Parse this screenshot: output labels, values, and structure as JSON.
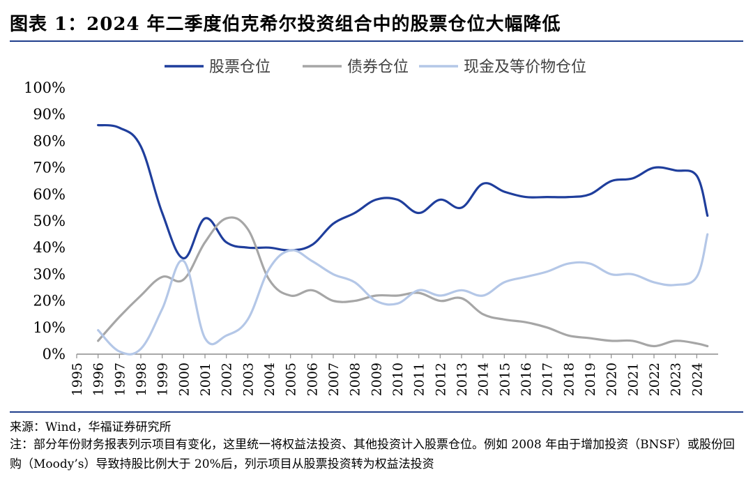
{
  "title": "图表 1：2024 年二季度伯克希尔投资组合中的股票仓位大幅降低",
  "source": "来源：Wind，华福证券研究所",
  "note": "注：部分年份财务报表列示项目有变化，这里统一将权益法投资、其他投资计入股票仓位。例如 2008 年由于增加投资（BNSF）或股份回购（Moody’s）导致持股比例大于 20%后，列示项目从股票投资转为权益法投资",
  "chart_data": {
    "type": "line",
    "title": "",
    "xlabel": "",
    "ylabel": "",
    "x_ticks": [
      "1995",
      "1996",
      "1997",
      "1998",
      "1999",
      "2000",
      "2001",
      "2002",
      "2003",
      "2004",
      "2005",
      "2006",
      "2007",
      "2008",
      "2009",
      "2010",
      "2011",
      "2012",
      "2013",
      "2014",
      "2015",
      "2016",
      "2017",
      "2018",
      "2019",
      "2020",
      "2021",
      "2022",
      "2023",
      "2024"
    ],
    "x_range": [
      1995,
      2025
    ],
    "y_ticks": [
      "0%",
      "10%",
      "20%",
      "30%",
      "40%",
      "50%",
      "60%",
      "70%",
      "80%",
      "90%",
      "100%"
    ],
    "ylim": [
      0,
      100
    ],
    "grid": false,
    "legend_position": "top",
    "x": [
      1996,
      1997,
      1998,
      1999,
      2000,
      2001,
      2002,
      2003,
      2004,
      2005,
      2006,
      2007,
      2008,
      2009,
      2010,
      2011,
      2012,
      2013,
      2014,
      2015,
      2016,
      2017,
      2018,
      2019,
      2020,
      2021,
      2022,
      2023,
      2024,
      2024.5
    ],
    "series": [
      {
        "name": "股票仓位",
        "color": "#1f3e9c",
        "values": [
          86,
          85,
          78,
          53,
          36,
          51,
          42,
          40,
          40,
          39,
          41,
          49,
          53,
          58,
          58,
          53,
          58,
          55,
          64,
          61,
          59,
          59,
          59,
          60,
          65,
          66,
          70,
          69,
          67,
          52
        ]
      },
      {
        "name": "债券仓位",
        "color": "#a6a6a6",
        "values": [
          5,
          14,
          22,
          29,
          28,
          42,
          51,
          47,
          28,
          22,
          24,
          20,
          20,
          22,
          22,
          23,
          20,
          21,
          15,
          13,
          12,
          10,
          7,
          6,
          5,
          5,
          3,
          5,
          4,
          3
        ]
      },
      {
        "name": "现金及等价物仓位",
        "color": "#b4c7e7",
        "values": [
          9,
          1,
          2,
          17,
          35,
          6,
          7,
          13,
          32,
          39,
          35,
          30,
          27,
          20,
          19,
          24,
          22,
          24,
          22,
          27,
          29,
          31,
          34,
          34,
          30,
          30,
          27,
          26,
          29,
          45
        ]
      }
    ]
  }
}
